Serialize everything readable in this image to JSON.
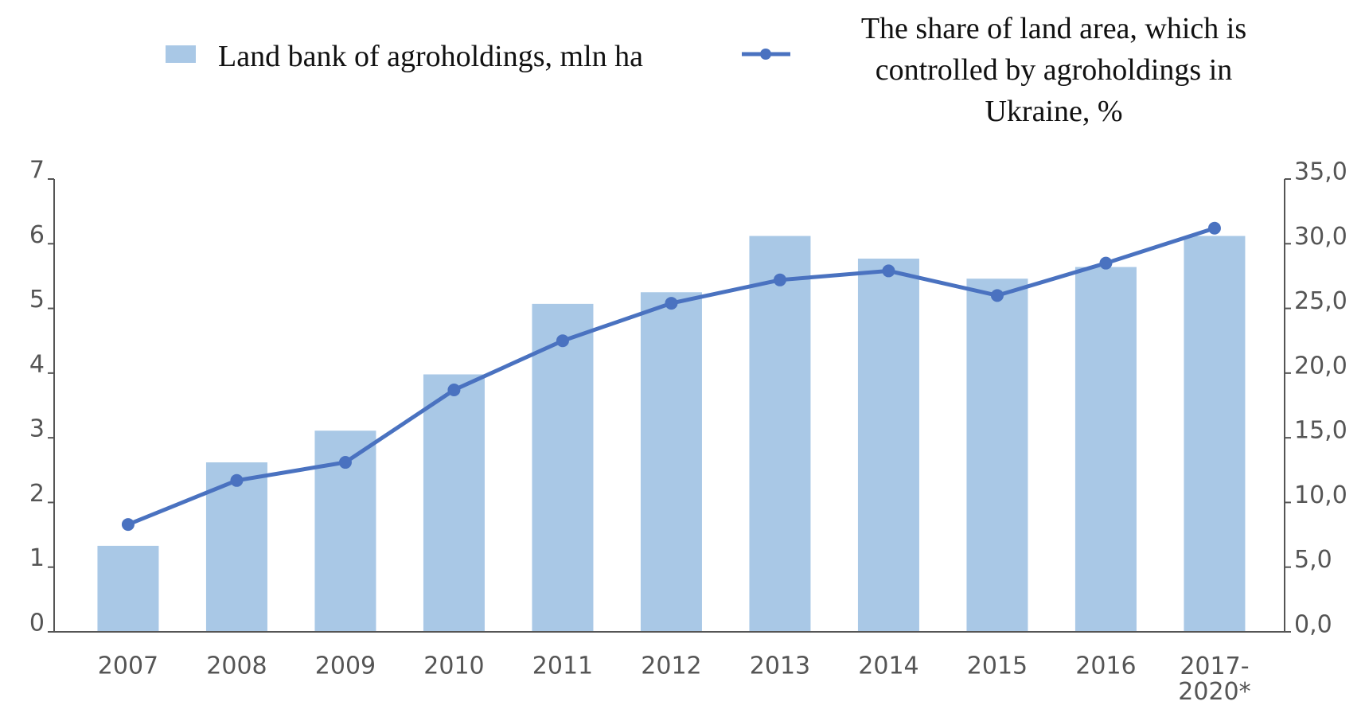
{
  "chart_data": {
    "type": "bar-line",
    "categories": [
      "2007",
      "2008",
      "2009",
      "2010",
      "2011",
      "2012",
      "2013",
      "2014",
      "2015",
      "2016",
      "2017-\n2020*"
    ],
    "series": [
      {
        "name": "Land bank of agroholdings, mln ha",
        "type": "bar",
        "color": "#a9c8e6",
        "values": [
          1.33,
          2.62,
          3.11,
          3.98,
          5.07,
          5.25,
          6.12,
          5.77,
          5.46,
          5.64,
          6.12
        ]
      },
      {
        "name": "The share of land area, which is controlled by agroholdings in Ukraine, %",
        "type": "line",
        "axis": "y2",
        "color": "#4a72c0",
        "values": [
          8.3,
          11.7,
          13.1,
          18.7,
          22.5,
          25.4,
          27.2,
          27.9,
          26.0,
          28.5,
          31.2
        ]
      }
    ],
    "ylim": [
      0,
      7
    ],
    "yticks": [
      0,
      1,
      2,
      3,
      4,
      5,
      6,
      7
    ],
    "y2lim": [
      0,
      35
    ],
    "y2ticks": [
      {
        "value": 0,
        "label": "0,0"
      },
      {
        "value": 5,
        "label": "5,0"
      },
      {
        "value": 10,
        "label": "10,0"
      },
      {
        "value": 15,
        "label": "15,0"
      },
      {
        "value": 20,
        "label": "20,0"
      },
      {
        "value": 25,
        "label": "25,0"
      },
      {
        "value": 30,
        "label": "30,0"
      },
      {
        "value": 35,
        "label": "35,0"
      }
    ]
  }
}
